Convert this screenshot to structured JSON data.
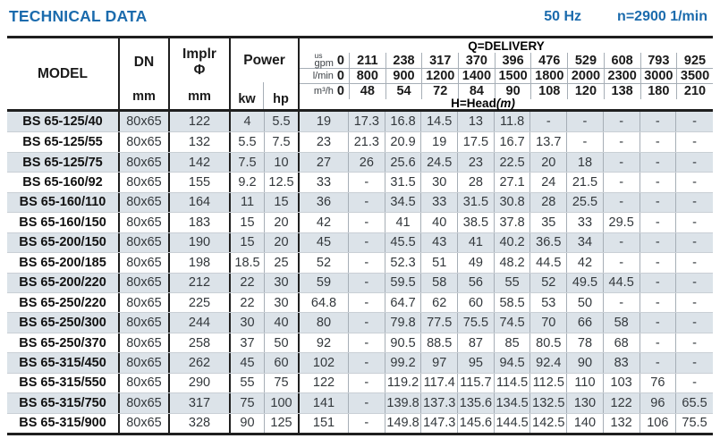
{
  "page": {
    "title": "TECHNICAL DATA",
    "frequency": "50 Hz",
    "speed": "n=2900 1/min"
  },
  "colors": {
    "accent": "#1b6bad",
    "row_shade": "#dce3e9"
  },
  "table": {
    "headers": {
      "model": "MODEL",
      "dn": "DN",
      "implr_line1": "Implr",
      "implr_line2": "Φ",
      "power": "Power",
      "unit_mm_dn": "mm",
      "unit_mm_implr": "mm",
      "unit_kw": "kw",
      "unit_hp": "hp",
      "delivery_title": "Q=DELIVERY",
      "head_title_main": "H=Head",
      "head_title_unit": "(m)",
      "flow_units": [
        {
          "label_small": "us",
          "label": "gpm",
          "zero": "0",
          "values": [
            "211",
            "238",
            "317",
            "370",
            "396",
            "476",
            "529",
            "608",
            "793",
            "925"
          ]
        },
        {
          "label": "l/min",
          "zero": "0",
          "values": [
            "800",
            "900",
            "1200",
            "1400",
            "1500",
            "1800",
            "2000",
            "2300",
            "3000",
            "3500"
          ]
        },
        {
          "label": "m³/h",
          "zero": "0",
          "values": [
            "48",
            "54",
            "72",
            "84",
            "90",
            "108",
            "120",
            "138",
            "180",
            "210"
          ]
        }
      ]
    },
    "rows": [
      {
        "model": "BS 65-125/40",
        "dn": "80x65",
        "implr": "122",
        "kw": "4",
        "hp": "5.5",
        "h": [
          "19",
          "17.3",
          "16.8",
          "14.5",
          "13",
          "11.8",
          "-",
          "-",
          "-",
          "-",
          "-"
        ]
      },
      {
        "model": "BS 65-125/55",
        "dn": "80x65",
        "implr": "132",
        "kw": "5.5",
        "hp": "7.5",
        "h": [
          "23",
          "21.3",
          "20.9",
          "19",
          "17.5",
          "16.7",
          "13.7",
          "-",
          "-",
          "-",
          "-"
        ]
      },
      {
        "model": "BS 65-125/75",
        "dn": "80x65",
        "implr": "142",
        "kw": "7.5",
        "hp": "10",
        "h": [
          "27",
          "26",
          "25.6",
          "24.5",
          "23",
          "22.5",
          "20",
          "18",
          "-",
          "-",
          "-"
        ]
      },
      {
        "model": "BS 65-160/92",
        "dn": "80x65",
        "implr": "155",
        "kw": "9.2",
        "hp": "12.5",
        "h": [
          "33",
          "-",
          "31.5",
          "30",
          "28",
          "27.1",
          "24",
          "21.5",
          "-",
          "-",
          "-"
        ]
      },
      {
        "model": "BS 65-160/110",
        "dn": "80x65",
        "implr": "164",
        "kw": "11",
        "hp": "15",
        "h": [
          "36",
          "-",
          "34.5",
          "33",
          "31.5",
          "30.8",
          "28",
          "25.5",
          "-",
          "-",
          "-"
        ]
      },
      {
        "model": "BS 65-160/150",
        "dn": "80x65",
        "implr": "183",
        "kw": "15",
        "hp": "20",
        "h": [
          "42",
          "-",
          "41",
          "40",
          "38.5",
          "37.8",
          "35",
          "33",
          "29.5",
          "-",
          "-"
        ]
      },
      {
        "model": "BS 65-200/150",
        "dn": "80x65",
        "implr": "190",
        "kw": "15",
        "hp": "20",
        "h": [
          "45",
          "-",
          "45.5",
          "43",
          "41",
          "40.2",
          "36.5",
          "34",
          "-",
          "-",
          "-"
        ]
      },
      {
        "model": "BS 65-200/185",
        "dn": "80x65",
        "implr": "198",
        "kw": "18.5",
        "hp": "25",
        "h": [
          "52",
          "-",
          "52.3",
          "51",
          "49",
          "48.2",
          "44.5",
          "42",
          "-",
          "-",
          "-"
        ]
      },
      {
        "model": "BS 65-200/220",
        "dn": "80x65",
        "implr": "212",
        "kw": "22",
        "hp": "30",
        "h": [
          "59",
          "-",
          "59.5",
          "58",
          "56",
          "55",
          "52",
          "49.5",
          "44.5",
          "-",
          "-"
        ]
      },
      {
        "model": "BS 65-250/220",
        "dn": "80x65",
        "implr": "225",
        "kw": "22",
        "hp": "30",
        "h": [
          "64.8",
          "-",
          "64.7",
          "62",
          "60",
          "58.5",
          "53",
          "50",
          "-",
          "-",
          "-"
        ]
      },
      {
        "model": "BS 65-250/300",
        "dn": "80x65",
        "implr": "244",
        "kw": "30",
        "hp": "40",
        "h": [
          "80",
          "-",
          "79.8",
          "77.5",
          "75.5",
          "74.5",
          "70",
          "66",
          "58",
          "-",
          "-"
        ]
      },
      {
        "model": "BS 65-250/370",
        "dn": "80x65",
        "implr": "258",
        "kw": "37",
        "hp": "50",
        "h": [
          "92",
          "-",
          "90.5",
          "88.5",
          "87",
          "85",
          "80.5",
          "78",
          "68",
          "-",
          "-"
        ]
      },
      {
        "model": "BS 65-315/450",
        "dn": "80x65",
        "implr": "262",
        "kw": "45",
        "hp": "60",
        "h": [
          "102",
          "-",
          "99.2",
          "97",
          "95",
          "94.5",
          "92.4",
          "90",
          "83",
          "-",
          "-"
        ]
      },
      {
        "model": "BS 65-315/550",
        "dn": "80x65",
        "implr": "290",
        "kw": "55",
        "hp": "75",
        "h": [
          "122",
          "-",
          "119.2",
          "117.4",
          "115.7",
          "114.5",
          "112.5",
          "110",
          "103",
          "76",
          "-"
        ]
      },
      {
        "model": "BS 65-315/750",
        "dn": "80x65",
        "implr": "317",
        "kw": "75",
        "hp": "100",
        "h": [
          "141",
          "-",
          "139.8",
          "137.3",
          "135.6",
          "134.5",
          "132.5",
          "130",
          "122",
          "96",
          "65.5"
        ]
      },
      {
        "model": "BS 65-315/900",
        "dn": "80x65",
        "implr": "328",
        "kw": "90",
        "hp": "125",
        "h": [
          "151",
          "-",
          "149.8",
          "147.3",
          "145.6",
          "144.5",
          "142.5",
          "140",
          "132",
          "106",
          "75.5"
        ]
      }
    ]
  }
}
